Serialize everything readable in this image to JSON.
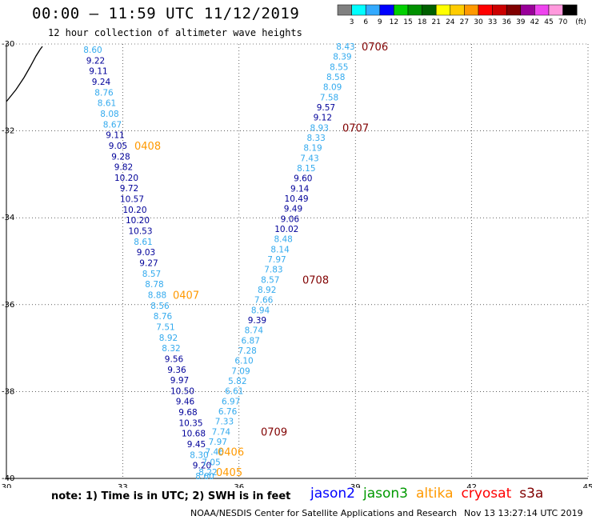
{
  "header": {
    "title": "00:00 – 11:59 UTC 11/12/2019",
    "subtitle": "12 hour collection of altimeter wave heights"
  },
  "legend": {
    "ticks": [
      "3",
      "6",
      "9",
      "12",
      "15",
      "18",
      "21",
      "24",
      "27",
      "30",
      "33",
      "36",
      "39",
      "42",
      "45",
      "70"
    ],
    "unit": "(ft)",
    "colors": [
      "#808080",
      "#00ffff",
      "#33aaff",
      "#0000ff",
      "#00d000",
      "#009000",
      "#006000",
      "#ffff00",
      "#ffcc00",
      "#ff9900",
      "#ff0000",
      "#cc0000",
      "#800000",
      "#990099",
      "#ee44ee",
      "#ff99dd",
      "#000000"
    ]
  },
  "axes": {
    "lon_ticks": [
      30,
      33,
      36,
      39,
      42,
      45
    ],
    "lat_ticks": [
      -30,
      -32,
      -34,
      -36,
      -38,
      -40
    ],
    "lon_range": [
      30,
      45
    ],
    "lat_range": [
      -40,
      -30
    ]
  },
  "colors": {
    "light": "#33aaee",
    "dark": "#000099",
    "orange": "#ff9900",
    "maroon": "#800000"
  },
  "tracks": [
    {
      "points": [
        {
          "v": "8.60",
          "c": "light"
        },
        {
          "v": "9.22",
          "c": "dark"
        },
        {
          "v": "9.11",
          "c": "dark"
        },
        {
          "v": "9.24",
          "c": "dark"
        },
        {
          "v": "8.76",
          "c": "light"
        },
        {
          "v": "8.61",
          "c": "light"
        },
        {
          "v": "8.08",
          "c": "light"
        },
        {
          "v": "8.67",
          "c": "light"
        },
        {
          "v": "9.11",
          "c": "dark"
        },
        {
          "v": "9.05",
          "c": "dark"
        },
        {
          "v": "9.28",
          "c": "dark"
        },
        {
          "v": "9.82",
          "c": "dark"
        },
        {
          "v": "10.20",
          "c": "dark"
        },
        {
          "v": "9.72",
          "c": "dark"
        },
        {
          "v": "10.57",
          "c": "dark"
        },
        {
          "v": "10.20",
          "c": "dark"
        },
        {
          "v": "10.20",
          "c": "dark"
        },
        {
          "v": "10.53",
          "c": "dark"
        },
        {
          "v": "8.61",
          "c": "light"
        },
        {
          "v": "9.03",
          "c": "dark"
        },
        {
          "v": "9.27",
          "c": "dark"
        },
        {
          "v": "8.57",
          "c": "light"
        },
        {
          "v": "8.78",
          "c": "light"
        },
        {
          "v": "8.88",
          "c": "light"
        },
        {
          "v": "8.56",
          "c": "light"
        },
        {
          "v": "8.76",
          "c": "light"
        },
        {
          "v": "7.51",
          "c": "light"
        },
        {
          "v": "8.92",
          "c": "light"
        },
        {
          "v": "8.32",
          "c": "light"
        },
        {
          "v": "9.56",
          "c": "dark"
        },
        {
          "v": "9.36",
          "c": "dark"
        },
        {
          "v": "9.97",
          "c": "dark"
        },
        {
          "v": "10.50",
          "c": "dark"
        },
        {
          "v": "9.46",
          "c": "dark"
        },
        {
          "v": "9.68",
          "c": "dark"
        },
        {
          "v": "10.35",
          "c": "dark"
        },
        {
          "v": "10.68",
          "c": "dark"
        },
        {
          "v": "9.45",
          "c": "dark"
        },
        {
          "v": "8.30",
          "c": "light"
        },
        {
          "v": "9.20",
          "c": "dark"
        },
        {
          "v": "8.60",
          "c": "light"
        }
      ],
      "labels": [
        {
          "t": "0408",
          "c": "orange",
          "at": 9
        },
        {
          "t": "0407",
          "c": "orange",
          "at": 23
        }
      ]
    },
    {
      "points": [
        {
          "v": "8.43",
          "c": "light"
        },
        {
          "v": "8.39",
          "c": "light"
        },
        {
          "v": "8.55",
          "c": "light"
        },
        {
          "v": "8.58",
          "c": "light"
        },
        {
          "v": "8.09",
          "c": "light"
        },
        {
          "v": "7.58",
          "c": "light"
        },
        {
          "v": "9.57",
          "c": "dark"
        },
        {
          "v": "9.12",
          "c": "dark"
        },
        {
          "v": "8.93",
          "c": "light"
        },
        {
          "v": "8.33",
          "c": "light"
        },
        {
          "v": "8.19",
          "c": "light"
        },
        {
          "v": "7.43",
          "c": "light"
        },
        {
          "v": "8.15",
          "c": "light"
        },
        {
          "v": "9.60",
          "c": "dark"
        },
        {
          "v": "9.14",
          "c": "dark"
        },
        {
          "v": "10.49",
          "c": "dark"
        },
        {
          "v": "9.49",
          "c": "dark"
        },
        {
          "v": "9.06",
          "c": "dark"
        },
        {
          "v": "10.02",
          "c": "dark"
        },
        {
          "v": "8.48",
          "c": "light"
        },
        {
          "v": "8.14",
          "c": "light"
        },
        {
          "v": "7.97",
          "c": "light"
        },
        {
          "v": "7.83",
          "c": "light"
        },
        {
          "v": "8.57",
          "c": "light"
        },
        {
          "v": "8.92",
          "c": "light"
        },
        {
          "v": "7.66",
          "c": "light"
        },
        {
          "v": "8.94",
          "c": "light"
        },
        {
          "v": "9.39",
          "c": "dark"
        },
        {
          "v": "8.74",
          "c": "light"
        },
        {
          "v": "6.87",
          "c": "light"
        },
        {
          "v": "7.28",
          "c": "light"
        },
        {
          "v": "6.10",
          "c": "light"
        },
        {
          "v": "7.09",
          "c": "light"
        },
        {
          "v": "5.82",
          "c": "light"
        },
        {
          "v": "6.61",
          "c": "light"
        },
        {
          "v": "6.97",
          "c": "light"
        },
        {
          "v": "6.76",
          "c": "light"
        },
        {
          "v": "7.33",
          "c": "light"
        },
        {
          "v": "7.74",
          "c": "light"
        },
        {
          "v": "7.97",
          "c": "light"
        },
        {
          "v": "7.46",
          "c": "light"
        },
        {
          "v": "7.05",
          "c": "light"
        },
        {
          "v": "8.22",
          "c": "light"
        }
      ],
      "labels": [
        {
          "t": "0706",
          "c": "maroon",
          "at": 0
        },
        {
          "t": "0707",
          "c": "maroon",
          "at": 8
        },
        {
          "t": "0708",
          "c": "maroon",
          "at": 23
        },
        {
          "t": "0709",
          "c": "maroon",
          "at": 38
        },
        {
          "t": "0406",
          "c": "orange",
          "at": 40
        },
        {
          "t": "0405",
          "c": "orange",
          "at": 42
        }
      ]
    }
  ],
  "footer": {
    "note": "note: 1) Time is in UTC; 2) SWH is in feet",
    "satellites": [
      {
        "name": "jason2",
        "color": "#0000ff"
      },
      {
        "name": "jason3",
        "color": "#009900"
      },
      {
        "name": "altika",
        "color": "#ff9900"
      },
      {
        "name": "cryosat",
        "color": "#ff0000"
      },
      {
        "name": "s3a",
        "color": "#800000"
      }
    ],
    "credit": "NOAA/NESDIS Center for Satellite Applications and Research",
    "timestamp": "Nov 13 13:27:14 UTC 2019"
  }
}
